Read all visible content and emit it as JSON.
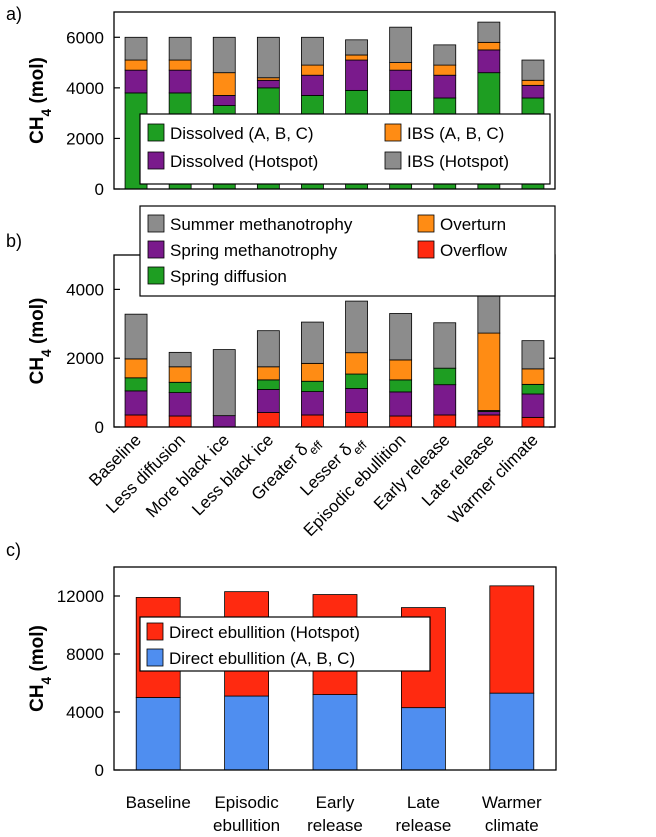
{
  "colors": {
    "dissolved_abc": "#1e9e22",
    "ibs_abc": "#ff8c14",
    "dissolved_hotspot": "#7a1a8c",
    "ibs_hotspot": "#8c8c8c",
    "summer_methanotrophy": "#8c8c8c",
    "overturn": "#ff8c14",
    "spring_methanotrophy": "#7a1a8c",
    "overflow": "#ff2a10",
    "spring_diffusion": "#1e9e22",
    "direct_hotspot": "#ff2a10",
    "direct_abc": "#4f8ef0"
  },
  "chart_data": [
    {
      "panel": "a)",
      "type": "bar",
      "stacked": true,
      "ylabel": "CH4 (mol)",
      "ylim": [
        0,
        7000
      ],
      "yticks": [
        "0",
        "2000",
        "4000",
        "6000"
      ],
      "legend": "bottom-center",
      "categories": [
        "Baseline",
        "Less diffusion",
        "More black ice",
        "Less black ice",
        "Greater δeff",
        "Lesser δeff",
        "Episodic ebullition",
        "Early release",
        "Late release",
        "Warmer climate"
      ],
      "series": [
        {
          "name": "Dissolved (A, B, C)",
          "color_key": "dissolved_abc",
          "values": [
            3800,
            3800,
            3300,
            4000,
            3700,
            3900,
            3900,
            3600,
            4600,
            3600
          ]
        },
        {
          "name": "Dissolved (Hotspot)",
          "color_key": "dissolved_hotspot",
          "values": [
            900,
            900,
            400,
            300,
            800,
            1200,
            800,
            900,
            900,
            500
          ]
        },
        {
          "name": "IBS (A, B, C)",
          "color_key": "ibs_abc",
          "values": [
            400,
            400,
            900,
            100,
            400,
            200,
            300,
            400,
            300,
            200
          ]
        },
        {
          "name": "IBS (Hotspot)",
          "color_key": "ibs_hotspot",
          "values": [
            900,
            900,
            1400,
            1600,
            1100,
            600,
            1400,
            800,
            800,
            800
          ]
        }
      ]
    },
    {
      "panel": "b)",
      "type": "bar",
      "stacked": true,
      "ylabel": "CH4 (mol)",
      "ylim": [
        0,
        5000
      ],
      "yticks": [
        "0",
        "2000",
        "4000"
      ],
      "legend": "top",
      "categories": [
        "Baseline",
        "Less diffusion",
        "More black ice",
        "Less black ice",
        "Greater δeff",
        "Lesser δeff",
        "Episodic ebullition",
        "Early release",
        "Late release",
        "Warmer climate"
      ],
      "series": [
        {
          "name": "Overflow",
          "color_key": "overflow",
          "values": [
            350,
            320,
            0,
            420,
            350,
            420,
            320,
            350,
            350,
            280
          ]
        },
        {
          "name": "Spring methanotrophy",
          "color_key": "spring_methanotrophy",
          "values": [
            700,
            680,
            330,
            670,
            680,
            700,
            700,
            880,
            100,
            680
          ]
        },
        {
          "name": "Spring diffusion",
          "color_key": "spring_diffusion",
          "values": [
            380,
            300,
            0,
            280,
            300,
            420,
            350,
            480,
            30,
            280
          ]
        },
        {
          "name": "Overturn",
          "color_key": "overturn",
          "values": [
            550,
            450,
            0,
            380,
            520,
            620,
            580,
            0,
            2250,
            450
          ]
        },
        {
          "name": "Summer methanotrophy",
          "color_key": "summer_methanotrophy",
          "values": [
            1300,
            420,
            1920,
            1050,
            1200,
            1500,
            1350,
            1320,
            1350,
            820
          ]
        }
      ]
    },
    {
      "panel": "c)",
      "type": "bar",
      "stacked": true,
      "ylabel": "CH4 (mol)",
      "ylim": [
        0,
        14000
      ],
      "yticks": [
        "0",
        "4000",
        "8000",
        "12000"
      ],
      "legend": "top-left",
      "categories": [
        [
          "Baseline"
        ],
        [
          "Episodic",
          "ebullition"
        ],
        [
          "Early",
          "release"
        ],
        [
          "Late",
          "release"
        ],
        [
          "Warmer",
          "climate"
        ]
      ],
      "series": [
        {
          "name": "Direct ebullition (A, B, C)",
          "color_key": "direct_abc",
          "values": [
            5000,
            5100,
            5200,
            4300,
            5300
          ]
        },
        {
          "name": "Direct ebullition (Hotspot)",
          "color_key": "direct_hotspot",
          "values": [
            6900,
            7200,
            6900,
            6900,
            7400
          ]
        }
      ]
    }
  ]
}
